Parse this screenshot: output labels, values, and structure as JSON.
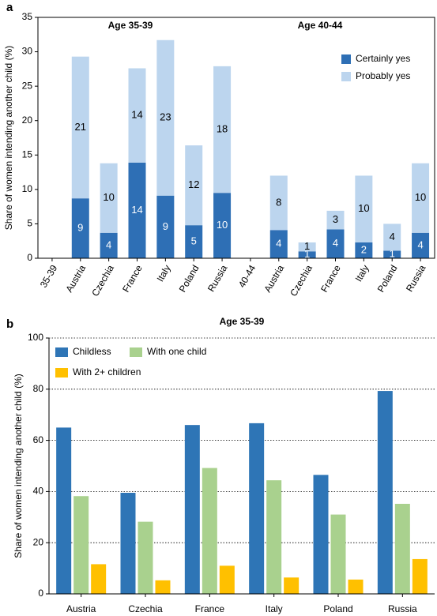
{
  "chart_data": [
    {
      "type": "bar",
      "stacked": true,
      "panel_label": "a",
      "ylabel": "Share of women intending another child (%)",
      "annotations": [
        "Age 35-39",
        "Age 40-44"
      ],
      "categories": [
        "35-39",
        "Austria",
        "Czechia",
        "France",
        "Italy",
        "Poland",
        "Russia",
        "40-44",
        "Austria",
        "Czechia",
        "France",
        "Italy",
        "Poland",
        "Russia"
      ],
      "series": [
        {
          "name": "Certainly yes",
          "color": "#2e6fb5",
          "values": [
            null,
            8.7,
            3.7,
            13.9,
            9.1,
            4.8,
            9.5,
            null,
            4.1,
            1.0,
            4.2,
            2.3,
            1.1,
            3.7
          ],
          "value_labels": [
            null,
            "9",
            "4",
            "14",
            "9",
            "5",
            "10",
            null,
            "4",
            "1",
            "4",
            "2",
            "1",
            "4"
          ]
        },
        {
          "name": "Probably yes",
          "color": "#bcd5ee",
          "values": [
            null,
            20.6,
            10.1,
            13.7,
            22.6,
            11.6,
            18.4,
            null,
            7.9,
            1.3,
            2.7,
            9.7,
            3.9,
            10.1
          ],
          "value_labels": [
            null,
            "21",
            "10",
            "14",
            "23",
            "12",
            "18",
            null,
            "8",
            "1",
            "3",
            "10",
            "4",
            "10"
          ]
        }
      ],
      "ylim": [
        0,
        35
      ],
      "yticks": [
        0,
        5,
        10,
        15,
        20,
        25,
        30,
        35
      ],
      "grid": false,
      "legend": "upper right"
    },
    {
      "type": "bar",
      "stacked": false,
      "panel_label": "b",
      "title": "Age 35-39",
      "ylabel": "Share of women intending another child (%)",
      "categories": [
        "Austria",
        "Czechia",
        "France",
        "Italy",
        "Poland",
        "Russia"
      ],
      "series": [
        {
          "name": "Childless",
          "color": "#2e75b6",
          "values": [
            65,
            39.5,
            66,
            66.7,
            46.5,
            79.3
          ]
        },
        {
          "name": "With one child",
          "color": "#a9d18e",
          "values": [
            38.2,
            28.2,
            49.2,
            44.4,
            31,
            35.2
          ]
        },
        {
          "name": "With 2+ children",
          "color": "#ffc000",
          "values": [
            11.6,
            5.3,
            11,
            6.4,
            5.6,
            13.6
          ]
        }
      ],
      "ylim": [
        0,
        100
      ],
      "yticks": [
        0,
        20,
        40,
        60,
        80,
        100
      ],
      "grid": true,
      "legend": "upper left"
    }
  ]
}
